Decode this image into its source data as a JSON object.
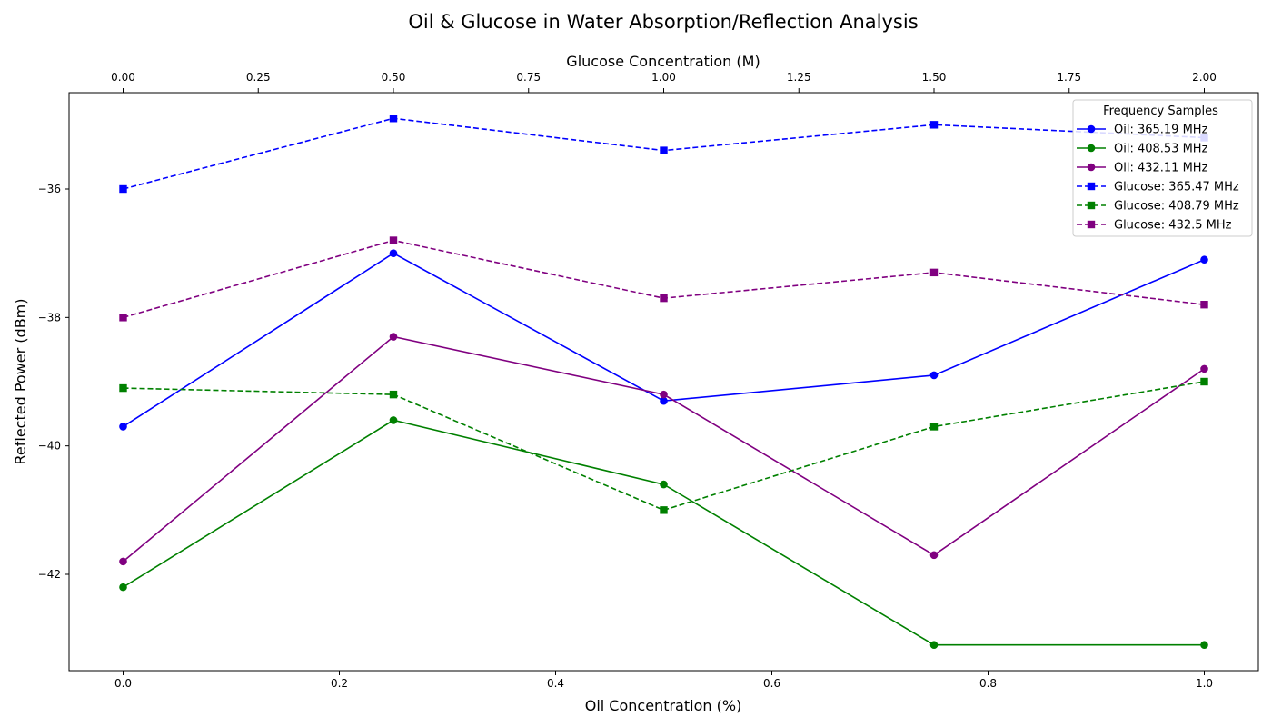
{
  "chart_data": {
    "type": "line",
    "title": "Oil & Glucose in Water Absorption/Reflection Analysis",
    "xlabel": "Oil Concentration (%)",
    "x2label": "Glucose Concentration (M)",
    "ylabel": "Reflected Power (dBm)",
    "xlim": [
      -0.05,
      1.05
    ],
    "x2lim": [
      -0.1,
      2.1
    ],
    "ylim": [
      -43.5,
      -34.5
    ],
    "xticks": [
      "0.0",
      "0.2",
      "0.4",
      "0.6",
      "0.8",
      "1.0"
    ],
    "x2ticks": [
      "0.00",
      "0.25",
      "0.50",
      "0.75",
      "1.00",
      "1.25",
      "1.50",
      "1.75",
      "2.00"
    ],
    "yticks": [
      "−36",
      "−38",
      "−40",
      "−42"
    ],
    "legend_title": "Frequency Samples",
    "legend_loc": "upper right",
    "series": [
      {
        "name": "Oil: 365.19 MHz",
        "axis": "bottom",
        "color": "#0000ff",
        "style": "solid",
        "marker": "circle",
        "x": [
          0.0,
          0.25,
          0.5,
          0.75,
          1.0
        ],
        "y": [
          -39.7,
          -37.0,
          -39.3,
          -38.9,
          -37.1
        ]
      },
      {
        "name": "Oil: 408.53 MHz",
        "axis": "bottom",
        "color": "#008000",
        "style": "solid",
        "marker": "circle",
        "x": [
          0.0,
          0.25,
          0.5,
          0.75,
          1.0
        ],
        "y": [
          -42.2,
          -39.6,
          -40.6,
          -43.1,
          -43.1
        ]
      },
      {
        "name": "Oil: 432.11 MHz",
        "axis": "bottom",
        "color": "#800080",
        "style": "solid",
        "marker": "circle",
        "x": [
          0.0,
          0.25,
          0.5,
          0.75,
          1.0
        ],
        "y": [
          -41.8,
          -38.3,
          -39.2,
          -41.7,
          -38.8
        ]
      },
      {
        "name": "Glucose: 365.47 MHz",
        "axis": "top",
        "color": "#0000ff",
        "style": "dashed",
        "marker": "square",
        "x": [
          0.0,
          0.5,
          1.0,
          1.5,
          2.0
        ],
        "y": [
          -36.0,
          -34.9,
          -35.4,
          -35.0,
          -35.2
        ]
      },
      {
        "name": "Glucose: 408.79 MHz",
        "axis": "top",
        "color": "#008000",
        "style": "dashed",
        "marker": "square",
        "x": [
          0.0,
          0.5,
          1.0,
          1.5,
          2.0
        ],
        "y": [
          -39.1,
          -39.2,
          -41.0,
          -39.7,
          -39.0
        ]
      },
      {
        "name": "Glucose: 432.5 MHz",
        "axis": "top",
        "color": "#800080",
        "style": "dashed",
        "marker": "square",
        "x": [
          0.0,
          0.5,
          1.0,
          1.5,
          2.0
        ],
        "y": [
          -38.0,
          -36.8,
          -37.7,
          -37.3,
          -37.8
        ]
      }
    ]
  }
}
